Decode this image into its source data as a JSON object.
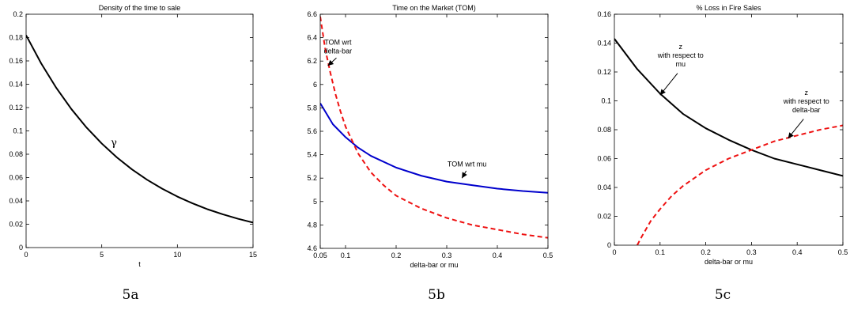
{
  "chart_data": [
    {
      "type": "line",
      "title": "Density of the time to sale",
      "xlabel": "t",
      "ylabel": "",
      "xlim": [
        0,
        15
      ],
      "ylim": [
        0,
        0.2
      ],
      "xticks": [
        0,
        5,
        10,
        15
      ],
      "xtick_labels": [
        "0",
        "5",
        "10",
        "15"
      ],
      "yticks": [
        0,
        0.02,
        0.04,
        0.06,
        0.08,
        0.1,
        0.12,
        0.14,
        0.16,
        0.18,
        0.2
      ],
      "ytick_labels": [
        "0",
        "0.02",
        "0.04",
        "0.06",
        "0.08",
        "0.1",
        "0.12",
        "0.14",
        "0.16",
        "0.18",
        "0.2"
      ],
      "series": [
        {
          "color": "#000000",
          "style": "solid",
          "x": [
            0,
            1,
            2,
            3,
            4,
            5,
            6,
            7,
            8,
            9,
            10,
            11,
            12,
            13,
            14,
            15
          ],
          "y": [
            0.182,
            0.1578,
            0.1368,
            0.1186,
            0.1028,
            0.0892,
            0.0773,
            0.067,
            0.0581,
            0.0504,
            0.0437,
            0.0379,
            0.0328,
            0.0285,
            0.0247,
            0.0214
          ]
        }
      ],
      "annotations": [
        {
          "text": "γ",
          "x": 5.8,
          "y": 0.087
        }
      ],
      "caption": "5a"
    },
    {
      "type": "line",
      "title": "Time on the Market (TOM)",
      "xlabel": "delta-bar or mu",
      "ylabel": "",
      "xlim": [
        0.05,
        0.5
      ],
      "ylim": [
        4.6,
        6.6
      ],
      "xticks": [
        0.05,
        0.1,
        0.2,
        0.3,
        0.4,
        0.5
      ],
      "xtick_labels": [
        "0.05",
        "0.1",
        "0.2",
        "0.3",
        "0.4",
        "0.5"
      ],
      "yticks": [
        4.6,
        4.8,
        5,
        5.2,
        5.4,
        5.6,
        5.8,
        6,
        6.2,
        6.4,
        6.6
      ],
      "ytick_labels": [
        "4.6",
        "4.8",
        "5",
        "5.2",
        "5.4",
        "5.6",
        "5.8",
        "6",
        "6.2",
        "6.4",
        "6.6"
      ],
      "series": [
        {
          "color": "#0000cc",
          "style": "solid",
          "x": [
            0.05,
            0.075,
            0.1,
            0.125,
            0.15,
            0.2,
            0.25,
            0.3,
            0.35,
            0.4,
            0.45,
            0.5
          ],
          "y": [
            5.84,
            5.66,
            5.55,
            5.46,
            5.39,
            5.29,
            5.22,
            5.17,
            5.14,
            5.11,
            5.09,
            5.075
          ]
        },
        {
          "color": "#ee1111",
          "style": "dashed",
          "x": [
            0.05,
            0.06,
            0.07,
            0.08,
            0.09,
            0.1,
            0.125,
            0.15,
            0.175,
            0.2,
            0.25,
            0.3,
            0.35,
            0.4,
            0.45,
            0.5
          ],
          "y": [
            6.58,
            6.3,
            6.1,
            5.92,
            5.77,
            5.64,
            5.41,
            5.25,
            5.14,
            5.05,
            4.94,
            4.86,
            4.8,
            4.76,
            4.72,
            4.69
          ]
        }
      ],
      "annotations": [
        {
          "text": "TOM wrt",
          "text2": "delta-bar",
          "x": 0.085,
          "y": 6.34,
          "arrow_to": [
            0.065,
            6.16
          ]
        },
        {
          "text": "TOM wrt mu",
          "x": 0.34,
          "y": 5.3,
          "arrow_to": [
            0.33,
            5.2
          ]
        }
      ],
      "caption": "5b"
    },
    {
      "type": "line",
      "title": "% Loss in Fire Sales",
      "xlabel": "delta-bar or mu",
      "ylabel": "",
      "xlim": [
        0,
        0.5
      ],
      "ylim": [
        0,
        0.16
      ],
      "xticks": [
        0,
        0.1,
        0.2,
        0.3,
        0.4,
        0.5
      ],
      "xtick_labels": [
        "0",
        "0.1",
        "0.2",
        "0.3",
        "0.4",
        "0.5"
      ],
      "yticks": [
        0,
        0.02,
        0.04,
        0.06,
        0.08,
        0.1,
        0.12,
        0.14,
        0.16
      ],
      "ytick_labels": [
        "0",
        "0.02",
        "0.04",
        "0.06",
        "0.08",
        "0.1",
        "0.12",
        "0.14",
        "0.16"
      ],
      "series": [
        {
          "color": "#000000",
          "style": "solid",
          "x": [
            0,
            0.05,
            0.1,
            0.15,
            0.2,
            0.25,
            0.3,
            0.35,
            0.4,
            0.45,
            0.5
          ],
          "y": [
            0.143,
            0.122,
            0.105,
            0.091,
            0.081,
            0.073,
            0.066,
            0.06,
            0.056,
            0.052,
            0.048
          ]
        },
        {
          "color": "#ee1111",
          "style": "dashed",
          "x": [
            0.05,
            0.06,
            0.08,
            0.1,
            0.125,
            0.15,
            0.2,
            0.25,
            0.3,
            0.35,
            0.4,
            0.45,
            0.5
          ],
          "y": [
            0,
            0.006,
            0.017,
            0.025,
            0.034,
            0.041,
            0.052,
            0.06,
            0.066,
            0.072,
            0.076,
            0.08,
            0.083
          ]
        }
      ],
      "annotations": [
        {
          "text": "z",
          "text2": "with respect to",
          "text3": "mu",
          "x": 0.145,
          "y": 0.136,
          "arrow_to": [
            0.1,
            0.104
          ]
        },
        {
          "text": "z",
          "text2": "with respect to",
          "text3": "delta-bar",
          "x": 0.42,
          "y": 0.104,
          "arrow_to": [
            0.38,
            0.074
          ]
        }
      ],
      "caption": "5c"
    }
  ]
}
